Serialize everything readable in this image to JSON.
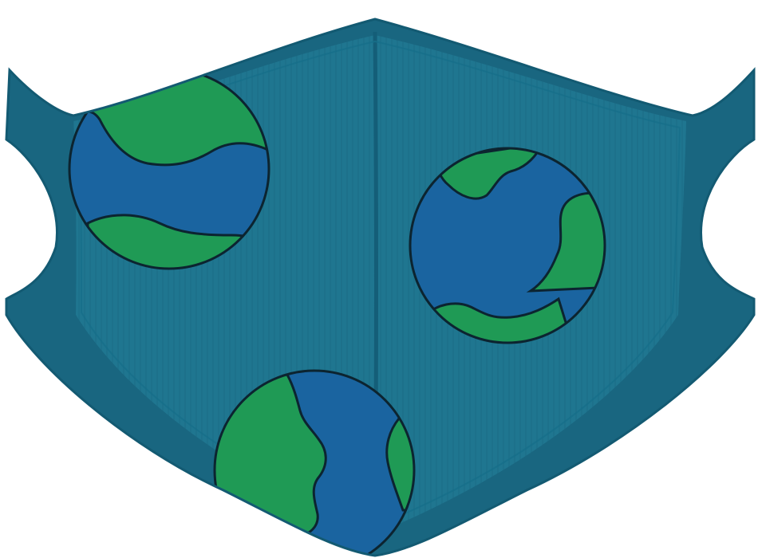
{
  "image": {
    "subject": "face-mask-with-earth-globes",
    "colors": {
      "background": "#ffffff",
      "mask_fabric": "#1f7690",
      "mask_band": "#196680",
      "mask_rib": "#176a84",
      "seam": "#145e78",
      "ocean": "#1a64a0",
      "land": "#1f9a55",
      "outline": "#0c2430"
    },
    "globes": [
      {
        "name": "globe-upper-left"
      },
      {
        "name": "globe-right"
      },
      {
        "name": "globe-bottom"
      }
    ]
  }
}
